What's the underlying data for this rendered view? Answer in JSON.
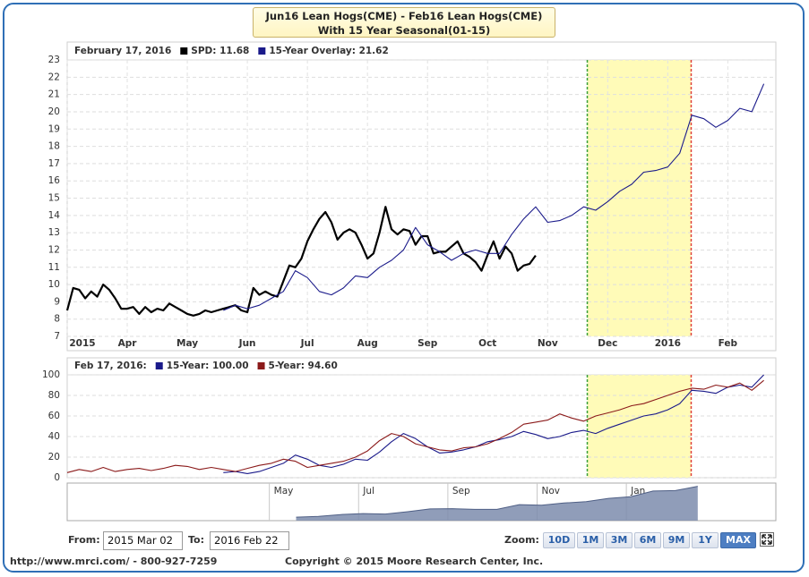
{
  "title": "Jun16 Lean Hogs(CME) - Feb16 Lean Hogs(CME)",
  "subtitle": "With 15 Year Seasonal(01-15)",
  "chart_data": [
    {
      "type": "line",
      "legend_title": "February 17, 2016",
      "xlim": [
        2,
        13.8
      ],
      "xticks": [
        {
          "value": 2,
          "label": "2015"
        },
        {
          "value": 3,
          "label": "Apr"
        },
        {
          "value": 4,
          "label": "May"
        },
        {
          "value": 5,
          "label": "Jun"
        },
        {
          "value": 6,
          "label": "Jul"
        },
        {
          "value": 7,
          "label": "Aug"
        },
        {
          "value": 8,
          "label": "Sep"
        },
        {
          "value": 9,
          "label": "Oct"
        },
        {
          "value": 10,
          "label": "Nov"
        },
        {
          "value": 11,
          "label": "Dec"
        },
        {
          "value": 12,
          "label": "2016"
        },
        {
          "value": 13,
          "label": "Feb"
        }
      ],
      "ylim": [
        7,
        23
      ],
      "yticks": [
        7,
        8,
        9,
        10,
        11,
        12,
        13,
        14,
        15,
        16,
        17,
        18,
        19,
        20,
        21,
        22,
        23
      ],
      "grid": true,
      "highlight": {
        "from": 10.66,
        "to": 12.39,
        "color": "#fffbb8",
        "from_color": "#3aa03a",
        "to_color": "#e0413a"
      },
      "series": [
        {
          "name": "SPD: 11.68",
          "color": "#000000",
          "width": 2.2,
          "x": [
            2.0,
            2.1,
            2.2,
            2.3,
            2.4,
            2.5,
            2.6,
            2.7,
            2.8,
            2.9,
            3.0,
            3.1,
            3.2,
            3.3,
            3.4,
            3.5,
            3.6,
            3.7,
            3.8,
            3.9,
            4.0,
            4.1,
            4.2,
            4.3,
            4.4,
            4.5,
            4.6,
            4.7,
            4.8,
            4.9,
            5.0,
            5.1,
            5.2,
            5.3,
            5.4,
            5.5,
            5.6,
            5.7,
            5.8,
            5.9,
            6.0,
            6.1,
            6.2,
            6.3,
            6.4,
            6.5,
            6.6,
            6.7,
            6.8,
            6.9,
            7.0,
            7.1,
            7.2,
            7.3,
            7.4,
            7.5,
            7.6,
            7.7,
            7.8,
            7.9,
            8.0,
            8.1,
            8.2,
            8.3,
            8.4,
            8.5,
            8.6,
            8.7,
            8.8,
            8.9,
            9.0,
            9.1,
            9.2,
            9.3,
            9.4,
            9.5,
            9.6,
            9.7,
            9.8
          ],
          "values": [
            8.5,
            9.8,
            9.7,
            9.2,
            9.6,
            9.3,
            10.0,
            9.7,
            9.2,
            8.6,
            8.6,
            8.7,
            8.3,
            8.7,
            8.4,
            8.6,
            8.5,
            8.9,
            8.7,
            8.5,
            8.3,
            8.2,
            8.3,
            8.5,
            8.4,
            8.5,
            8.6,
            8.7,
            8.8,
            8.5,
            8.4,
            9.8,
            9.4,
            9.6,
            9.4,
            9.3,
            10.2,
            11.1,
            11.0,
            11.5,
            12.5,
            13.2,
            13.8,
            14.2,
            13.6,
            12.6,
            13.0,
            13.2,
            13.0,
            12.3,
            11.5,
            11.8,
            13.0,
            14.5,
            13.2,
            12.9,
            13.2,
            13.1,
            12.3,
            12.8,
            12.8,
            11.8,
            11.9,
            11.9,
            12.2,
            12.5,
            11.8,
            11.6,
            11.3,
            10.8,
            11.7,
            12.5,
            11.5,
            12.2,
            11.8,
            10.8,
            11.1,
            11.2,
            11.68
          ]
        },
        {
          "name": "15-Year Overlay: 21.62",
          "color": "#1a1a8a",
          "width": 1.1,
          "x": [
            4.6,
            4.8,
            5.0,
            5.2,
            5.4,
            5.6,
            5.8,
            6.0,
            6.2,
            6.4,
            6.6,
            6.8,
            7.0,
            7.2,
            7.4,
            7.6,
            7.8,
            8.0,
            8.2,
            8.4,
            8.6,
            8.8,
            9.0,
            9.2,
            9.4,
            9.6,
            9.8,
            10.0,
            10.2,
            10.4,
            10.6,
            10.8,
            11.0,
            11.2,
            11.4,
            11.6,
            11.8,
            12.0,
            12.2,
            12.4,
            12.6,
            12.8,
            13.0,
            13.2,
            13.4,
            13.6
          ],
          "values": [
            8.5,
            8.8,
            8.6,
            8.8,
            9.2,
            9.6,
            10.8,
            10.4,
            9.6,
            9.4,
            9.8,
            10.5,
            10.4,
            11.0,
            11.4,
            12.0,
            13.3,
            12.3,
            11.9,
            11.4,
            11.8,
            12.0,
            11.8,
            11.8,
            12.9,
            13.8,
            14.5,
            13.6,
            13.7,
            14.0,
            14.5,
            14.3,
            14.8,
            15.4,
            15.8,
            16.5,
            16.6,
            16.8,
            17.6,
            19.8,
            19.6,
            19.1,
            19.5,
            20.2,
            20.0,
            21.62
          ]
        }
      ]
    },
    {
      "type": "line",
      "legend_title": "Feb 17, 2016:",
      "xlim": [
        2,
        13.8
      ],
      "ylim": [
        0,
        100
      ],
      "yticks": [
        0,
        20,
        40,
        60,
        80,
        100
      ],
      "grid": true,
      "highlight": {
        "from": 10.66,
        "to": 12.39,
        "color": "#fffbb8",
        "from_color": "#3aa03a",
        "to_color": "#e0413a"
      },
      "series": [
        {
          "name": "15-Year: 100.00",
          "color": "#1a1a8a",
          "width": 1.1,
          "x": [
            4.6,
            4.8,
            5.0,
            5.2,
            5.4,
            5.6,
            5.8,
            6.0,
            6.2,
            6.4,
            6.6,
            6.8,
            7.0,
            7.2,
            7.4,
            7.6,
            7.8,
            8.0,
            8.2,
            8.4,
            8.6,
            8.8,
            9.0,
            9.2,
            9.4,
            9.6,
            9.8,
            10.0,
            10.2,
            10.4,
            10.6,
            10.8,
            11.0,
            11.2,
            11.4,
            11.6,
            11.8,
            12.0,
            12.2,
            12.4,
            12.6,
            12.8,
            13.0,
            13.2,
            13.4,
            13.6
          ],
          "values": [
            5,
            6,
            4,
            6,
            10,
            14,
            22,
            18,
            12,
            10,
            13,
            18,
            17,
            25,
            35,
            43,
            38,
            30,
            24,
            25,
            27,
            30,
            35,
            37,
            40,
            45,
            42,
            38,
            40,
            44,
            46,
            43,
            48,
            52,
            56,
            60,
            62,
            66,
            72,
            85,
            84,
            82,
            88,
            90,
            88,
            100
          ]
        },
        {
          "name": "5-Year: 94.60",
          "color": "#8b1a1a",
          "width": 1.1,
          "x": [
            2.0,
            2.2,
            2.4,
            2.6,
            2.8,
            3.0,
            3.2,
            3.4,
            3.6,
            3.8,
            4.0,
            4.2,
            4.4,
            4.6,
            4.8,
            5.0,
            5.2,
            5.4,
            5.6,
            5.8,
            6.0,
            6.2,
            6.4,
            6.6,
            6.8,
            7.0,
            7.2,
            7.4,
            7.6,
            7.8,
            8.0,
            8.2,
            8.4,
            8.6,
            8.8,
            9.0,
            9.2,
            9.4,
            9.6,
            9.8,
            10.0,
            10.2,
            10.4,
            10.6,
            10.8,
            11.0,
            11.2,
            11.4,
            11.6,
            11.8,
            12.0,
            12.2,
            12.4,
            12.6,
            12.8,
            13.0,
            13.2,
            13.4,
            13.6
          ],
          "values": [
            5,
            8,
            6,
            10,
            6,
            8,
            9,
            7,
            9,
            12,
            11,
            8,
            10,
            8,
            6,
            9,
            12,
            14,
            18,
            16,
            10,
            12,
            14,
            16,
            20,
            26,
            36,
            43,
            40,
            33,
            30,
            27,
            26,
            29,
            30,
            33,
            38,
            44,
            52,
            54,
            56,
            62,
            58,
            55,
            60,
            63,
            66,
            70,
            72,
            76,
            80,
            84,
            87,
            86,
            90,
            88,
            92,
            85,
            94.6
          ]
        }
      ]
    },
    {
      "type": "area",
      "xlim": [
        -0.53,
        15.35
      ],
      "xticks": [
        {
          "value": 4,
          "label": "May"
        },
        {
          "value": 6,
          "label": "Jul"
        },
        {
          "value": 8,
          "label": "Sep"
        },
        {
          "value": 10,
          "label": "Nov"
        },
        {
          "value": 12,
          "label": "Jan"
        }
      ],
      "ylim": [
        7,
        23
      ],
      "series": [
        {
          "color": "#7d8cad",
          "x": [
            4.6,
            5.1,
            5.6,
            6.1,
            6.6,
            7.1,
            7.6,
            8.1,
            8.6,
            9.1,
            9.6,
            10.1,
            10.6,
            11.1,
            11.6,
            12.1,
            12.6,
            13.1,
            13.6
          ],
          "values": [
            8.5,
            8.8,
            9.6,
            10.0,
            9.8,
            10.8,
            12.0,
            12.1,
            11.8,
            11.8,
            13.8,
            13.6,
            14.5,
            15.1,
            16.5,
            17.2,
            19.6,
            19.8,
            21.62
          ]
        }
      ]
    }
  ],
  "range": {
    "from_label": "From:",
    "from": "2015 Mar 02",
    "to_label": "To:",
    "to": "2016 Feb 22"
  },
  "zoom": {
    "label": "Zoom:",
    "buttons": [
      "10D",
      "1M",
      "3M",
      "6M",
      "9M",
      "1Y",
      "MAX"
    ],
    "selected": 6
  },
  "footer": {
    "contact": "http://www.mrci.com/ - 800-927-7259",
    "copyright": "Copyright © 2015 Moore Research Center, Inc."
  }
}
